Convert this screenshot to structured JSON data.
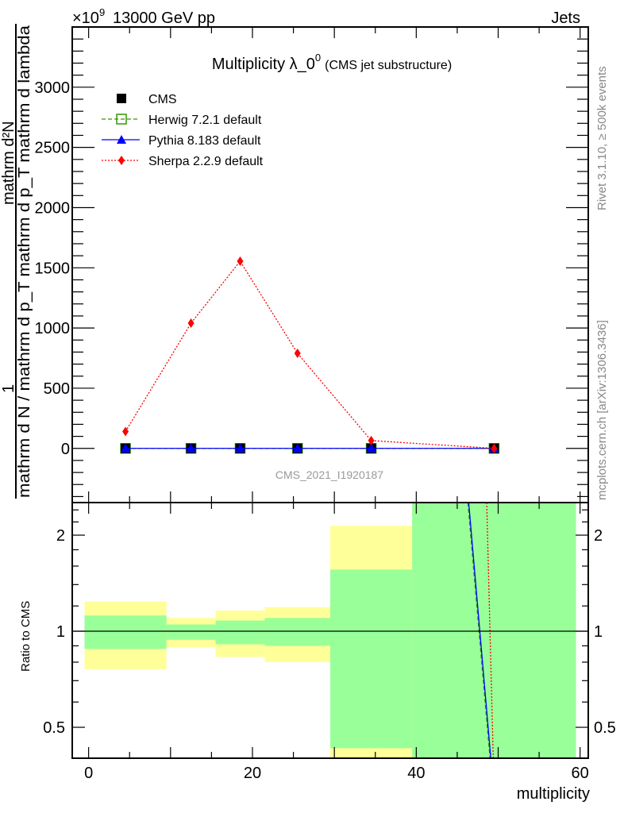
{
  "header": {
    "left": "13000 GeV pp",
    "right": "Jets",
    "scale_base": "×10",
    "scale_exp": "9"
  },
  "side_labels": {
    "rivet": "Rivet 3.1.10, ≥ 500k events",
    "mcplots": "mcplots.cern.ch [arXiv:1306.3436]"
  },
  "chart_data": [
    {
      "type": "line",
      "title": "Multiplicity λ_0",
      "title_sup": "0",
      "subtitle": "(CMS jet substructure)",
      "watermark": "CMS_2021_I1920187",
      "ylabel_numerator": "mathrm d²N",
      "ylabel_one": "1",
      "ylabel_denominator": "mathrm d N / mathrm d p_T mathrm d p_T mathrm d lambda",
      "xlim": [
        -2,
        61
      ],
      "ylim": [
        -450,
        3500
      ],
      "yticks": [
        0,
        500,
        1000,
        1500,
        2000,
        2500,
        3000
      ],
      "ytick_labels": [
        "0",
        "500",
        "1000",
        "1500",
        "2000",
        "2500",
        "3000"
      ],
      "legend_position": "top-left",
      "x": [
        4.5,
        12.5,
        18.5,
        25.5,
        34.5,
        49.5
      ],
      "series": [
        {
          "name": "CMS",
          "color": "#000000",
          "marker": "square",
          "style": "none",
          "values": [
            0,
            0,
            0,
            0,
            0,
            0
          ]
        },
        {
          "name": "Herwig 7.2.1 default",
          "color": "#339900",
          "marker": "open-square",
          "style": "dashed",
          "values": [
            0,
            0,
            0,
            0,
            0,
            0
          ]
        },
        {
          "name": "Pythia 8.183 default",
          "color": "#0000ff",
          "marker": "triangle",
          "style": "solid",
          "values": [
            0,
            0,
            0,
            0,
            0,
            0
          ]
        },
        {
          "name": "Sherpa 2.2.9 default",
          "color": "#ff0000",
          "marker": "diamond",
          "style": "dotted",
          "values": [
            140,
            1040,
            1555,
            790,
            65,
            0
          ]
        }
      ]
    },
    {
      "type": "area",
      "ylabel": "Ratio to CMS",
      "xlabel": "multiplicity",
      "xlim": [
        -2,
        61
      ],
      "ylim": [
        0.4,
        2.53
      ],
      "yscale": "log",
      "xticks": [
        0,
        20,
        40,
        60
      ],
      "xtick_labels": [
        "0",
        "20",
        "40",
        "60"
      ],
      "yticks": [
        0.5,
        1,
        2
      ],
      "ytick_labels": [
        "0.5",
        "1",
        "2"
      ],
      "bin_edges": [
        -0.5,
        9.5,
        15.5,
        21.5,
        29.5,
        39.5,
        59.5
      ],
      "total_band": {
        "color": "#ffff99",
        "low": [
          0.76,
          0.89,
          0.83,
          0.8,
          0.3,
          0.3
        ],
        "high": [
          1.24,
          1.1,
          1.16,
          1.19,
          2.14,
          3.0
        ]
      },
      "stat_band": {
        "color": "#99ff99",
        "low": [
          0.88,
          0.94,
          0.91,
          0.9,
          0.43,
          0.3
        ],
        "high": [
          1.12,
          1.05,
          1.08,
          1.1,
          1.56,
          3.0
        ]
      },
      "ratio_lines": [
        {
          "name": "Herwig 7.2.1 default",
          "color": "#339900",
          "style": "dashed",
          "points": [
            [
              46.3,
              2.53
            ],
            [
              49.0,
              0.4
            ]
          ]
        },
        {
          "name": "Pythia 8.183 default",
          "color": "#0000ff",
          "style": "solid",
          "points": [
            [
              46.4,
              2.53
            ],
            [
              49.1,
              0.4
            ]
          ]
        },
        {
          "name": "Sherpa 2.2.9 default",
          "color": "#ff0000",
          "style": "dotted",
          "points": [
            [
              48.6,
              2.53
            ],
            [
              49.4,
              0.4
            ]
          ]
        }
      ]
    }
  ]
}
